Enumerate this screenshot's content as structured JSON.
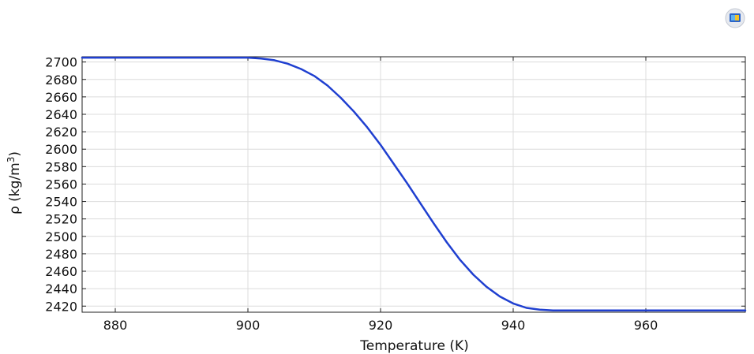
{
  "app": {
    "icon": "comsol-app-icon"
  },
  "chart_data": {
    "type": "line",
    "title": "",
    "xlabel": "Temperature (K)",
    "ylabel": "ρ (kg/m³)",
    "ylabel_parts": {
      "main": "ρ (kg/m",
      "sup": "3",
      "close": ")"
    },
    "xlim": [
      875,
      975
    ],
    "ylim": [
      2413,
      2706
    ],
    "xticks": [
      880,
      900,
      920,
      940,
      960
    ],
    "yticks": [
      2420,
      2440,
      2460,
      2480,
      2500,
      2520,
      2540,
      2560,
      2580,
      2600,
      2620,
      2640,
      2660,
      2680,
      2700
    ],
    "grid": true,
    "legend": "none",
    "series": [
      {
        "color": "#1f3fd0",
        "x": [
          875,
          880,
          890,
          900,
          902,
          904,
          906,
          908,
          910,
          912,
          914,
          916,
          918,
          920,
          922,
          924,
          926,
          928,
          930,
          932,
          934,
          936,
          938,
          940,
          942,
          944,
          946,
          948,
          950,
          960,
          970,
          975
        ],
        "y": [
          2705,
          2705,
          2705,
          2705,
          2704,
          2702,
          2698,
          2692,
          2684,
          2673,
          2659,
          2643,
          2625,
          2605,
          2583,
          2561,
          2538,
          2515,
          2493,
          2473,
          2456,
          2442,
          2431,
          2423,
          2418,
          2416,
          2415,
          2415,
          2415,
          2415,
          2415,
          2415
        ]
      }
    ]
  }
}
